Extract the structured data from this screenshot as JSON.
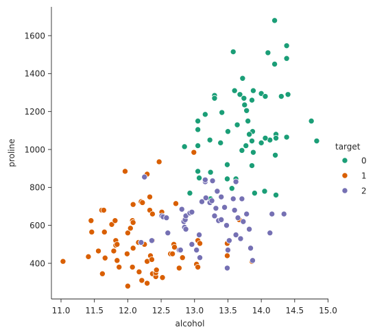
{
  "chart_data": {
    "type": "scatter",
    "title": "",
    "xlabel": "alcohol",
    "ylabel": "proline",
    "xlim": [
      10.95,
      15.0
    ],
    "ylim": [
      200,
      1750
    ],
    "x_ticks": [
      11.0,
      11.5,
      12.0,
      12.5,
      13.0,
      13.5,
      14.0,
      14.5,
      15.0
    ],
    "y_ticks": [
      400,
      600,
      800,
      1000,
      1200,
      1400,
      1600
    ],
    "x_tick_labels": [
      "11.0",
      "11.5",
      "12.0",
      "12.5",
      "13.0",
      "13.5",
      "14.0",
      "14.5",
      "15.0"
    ],
    "y_tick_labels": [
      "400",
      "600",
      "800",
      "1000",
      "1200",
      "1400",
      "1600"
    ],
    "grid": false,
    "legend": {
      "title": "target",
      "placement": "right"
    },
    "series": [
      {
        "name": "0",
        "color": "#1b9e77",
        "points": [
          [
            14.2,
            1680
          ],
          [
            14.38,
            1547
          ],
          [
            13.58,
            1515
          ],
          [
            14.1,
            1510
          ],
          [
            14.38,
            1480
          ],
          [
            14.2,
            1450
          ],
          [
            13.72,
            1375
          ],
          [
            13.88,
            1310
          ],
          [
            13.6,
            1310
          ],
          [
            13.68,
            1290
          ],
          [
            14.0,
            1295
          ],
          [
            14.4,
            1290
          ],
          [
            13.3,
            1285
          ],
          [
            13.3,
            1270
          ],
          [
            14.06,
            1280
          ],
          [
            14.3,
            1280
          ],
          [
            13.74,
            1270
          ],
          [
            13.86,
            1260
          ],
          [
            13.75,
            1235
          ],
          [
            13.41,
            1195
          ],
          [
            13.78,
            1205
          ],
          [
            13.16,
            1185
          ],
          [
            13.8,
            1150
          ],
          [
            14.75,
            1150
          ],
          [
            13.05,
            1150
          ],
          [
            13.64,
            1130
          ],
          [
            13.5,
            1095
          ],
          [
            13.05,
            1105
          ],
          [
            13.87,
            1095
          ],
          [
            13.82,
            1080
          ],
          [
            14.22,
            1080
          ],
          [
            14.13,
            1050
          ],
          [
            14.38,
            1065
          ],
          [
            14.22,
            1060
          ],
          [
            14.06,
            1060
          ],
          [
            13.23,
            1050
          ],
          [
            13.86,
            1045
          ],
          [
            14.83,
            1045
          ],
          [
            13.39,
            1035
          ],
          [
            14.0,
            1035
          ],
          [
            13.05,
            1020
          ],
          [
            12.85,
            1015
          ],
          [
            13.77,
            1020
          ],
          [
            13.71,
            995
          ],
          [
            13.88,
            985
          ],
          [
            14.21,
            970
          ],
          [
            13.49,
            920
          ],
          [
            13.86,
            915
          ],
          [
            13.05,
            885
          ],
          [
            13.24,
            880
          ],
          [
            13.07,
            850
          ],
          [
            13.49,
            845
          ],
          [
            13.62,
            845
          ],
          [
            13.9,
            770
          ],
          [
            14.05,
            780
          ],
          [
            14.22,
            760
          ],
          [
            12.93,
            770
          ],
          [
            13.24,
            740
          ],
          [
            13.56,
            795
          ]
        ]
      },
      {
        "name": "1",
        "color": "#d95f02",
        "points": [
          [
            11.03,
            410
          ],
          [
            11.41,
            435
          ],
          [
            11.45,
            625
          ],
          [
            11.46,
            565
          ],
          [
            11.56,
            465
          ],
          [
            11.61,
            680
          ],
          [
            11.62,
            345
          ],
          [
            11.64,
            680
          ],
          [
            11.65,
            565
          ],
          [
            11.66,
            428
          ],
          [
            11.76,
            605
          ],
          [
            11.79,
            465
          ],
          [
            11.81,
            625
          ],
          [
            11.82,
            520
          ],
          [
            11.82,
            495
          ],
          [
            11.84,
            415
          ],
          [
            11.84,
            500
          ],
          [
            11.87,
            380
          ],
          [
            11.96,
            885
          ],
          [
            11.99,
            450
          ],
          [
            12.0,
            280
          ],
          [
            12.0,
            560
          ],
          [
            12.04,
            585
          ],
          [
            12.07,
            625
          ],
          [
            12.07,
            380
          ],
          [
            12.08,
            710
          ],
          [
            12.08,
            615
          ],
          [
            12.08,
            480
          ],
          [
            12.16,
            510
          ],
          [
            12.17,
            355
          ],
          [
            12.2,
            725
          ],
          [
            12.21,
            310
          ],
          [
            12.22,
            720
          ],
          [
            12.25,
            500
          ],
          [
            12.25,
            855
          ],
          [
            12.29,
            870
          ],
          [
            12.29,
            410
          ],
          [
            12.29,
            295
          ],
          [
            12.33,
            680
          ],
          [
            12.33,
            750
          ],
          [
            12.34,
            440
          ],
          [
            12.36,
            420
          ],
          [
            12.37,
            520
          ],
          [
            12.37,
            660
          ],
          [
            12.37,
            345
          ],
          [
            12.42,
            330
          ],
          [
            12.42,
            350
          ],
          [
            12.43,
            365
          ],
          [
            12.47,
            935
          ],
          [
            12.51,
            670
          ],
          [
            12.52,
            325
          ],
          [
            12.6,
            560
          ],
          [
            12.64,
            450
          ],
          [
            12.67,
            450
          ],
          [
            12.69,
            500
          ],
          [
            12.7,
            485
          ],
          [
            12.72,
            715
          ],
          [
            12.77,
            375
          ],
          [
            12.82,
            430
          ],
          [
            12.85,
            630
          ],
          [
            12.99,
            985
          ],
          [
            13.03,
            395
          ],
          [
            13.05,
            380
          ],
          [
            13.05,
            520
          ],
          [
            13.08,
            505
          ],
          [
            13.49,
            440
          ],
          [
            13.49,
            505
          ],
          [
            13.67,
            630
          ],
          [
            13.86,
            410
          ]
        ]
      },
      {
        "name": "2",
        "color": "#7570b3",
        "points": [
          [
            12.2,
            510
          ],
          [
            12.25,
            855
          ],
          [
            12.36,
            520
          ],
          [
            12.51,
            650
          ],
          [
            12.53,
            645
          ],
          [
            12.58,
            640
          ],
          [
            12.6,
            560
          ],
          [
            12.77,
            470
          ],
          [
            12.79,
            470
          ],
          [
            12.81,
            685
          ],
          [
            12.84,
            620
          ],
          [
            12.85,
            590
          ],
          [
            12.86,
            630
          ],
          [
            12.87,
            580
          ],
          [
            12.87,
            650
          ],
          [
            12.93,
            665
          ],
          [
            12.96,
            670
          ],
          [
            13.07,
            550
          ],
          [
            13.08,
            430
          ],
          [
            13.11,
            725
          ],
          [
            13.16,
            830
          ],
          [
            13.16,
            840
          ],
          [
            13.17,
            745
          ],
          [
            13.23,
            720
          ],
          [
            13.26,
            730
          ],
          [
            13.27,
            835
          ],
          [
            13.3,
            650
          ],
          [
            13.32,
            690
          ],
          [
            13.34,
            780
          ],
          [
            13.36,
            625
          ],
          [
            13.4,
            630
          ],
          [
            13.4,
            750
          ],
          [
            13.45,
            695
          ],
          [
            13.48,
            600
          ],
          [
            13.49,
            375
          ],
          [
            13.5,
            470
          ],
          [
            13.52,
            520
          ],
          [
            13.58,
            740
          ],
          [
            13.6,
            680
          ],
          [
            13.62,
            830
          ],
          [
            13.62,
            550
          ],
          [
            13.65,
            640
          ],
          [
            13.69,
            530
          ],
          [
            13.71,
            740
          ],
          [
            13.73,
            620
          ],
          [
            13.78,
            660
          ],
          [
            13.82,
            580
          ],
          [
            13.84,
            480
          ],
          [
            13.87,
            415
          ],
          [
            14.13,
            560
          ],
          [
            14.16,
            660
          ],
          [
            14.34,
            660
          ],
          [
            12.96,
            500
          ],
          [
            13.03,
            470
          ]
        ]
      }
    ]
  }
}
